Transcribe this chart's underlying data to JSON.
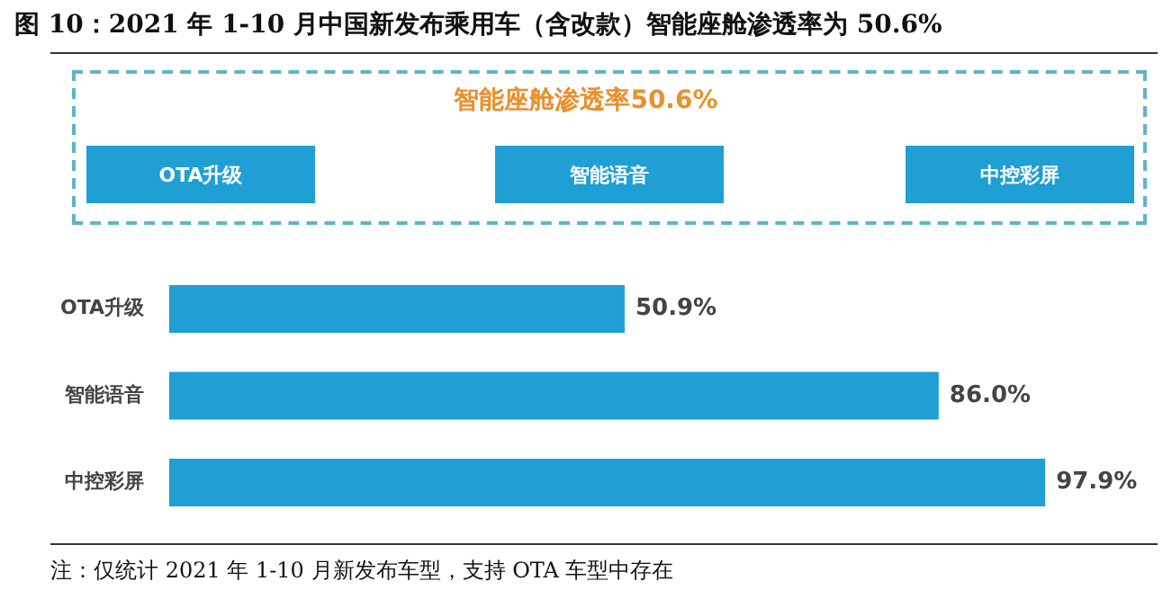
{
  "chart_data": {
    "type": "bar",
    "orientation": "horizontal",
    "title": "图 10：2021 年 1-10 月中国新发布乘用车（含改款）智能座舱渗透率为 50.6%",
    "categories": [
      "OTA升级",
      "智能语音",
      "中控彩屏"
    ],
    "values": [
      50.9,
      86.0,
      97.9
    ],
    "value_labels": [
      "50.9%",
      "86.0%",
      "97.9%"
    ],
    "color": "#1f9fd3",
    "tick_labels": "y",
    "legend": false,
    "annotations": [
      "智能座舱渗透率50.6%",
      "OTA升级",
      "智能语音",
      "中控彩屏",
      "注：仅统计 2021 年 1-10 月新发布车型，支持 OTA 车型中存在"
    ]
  }
}
